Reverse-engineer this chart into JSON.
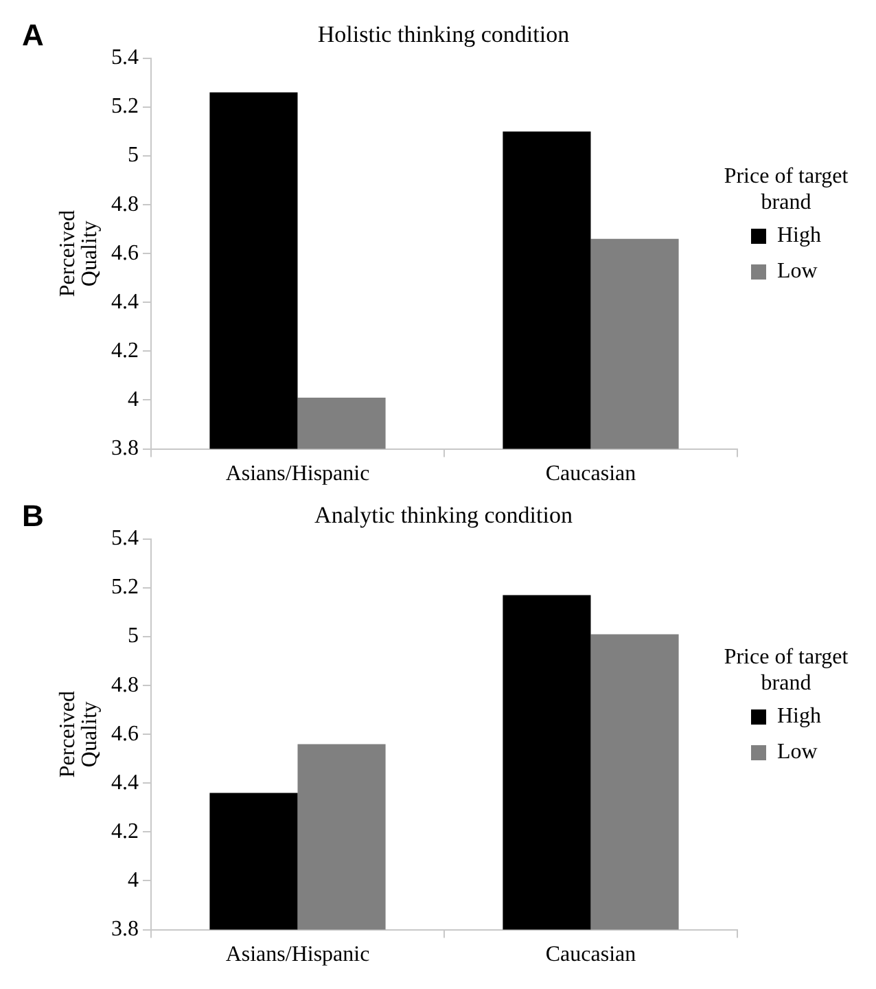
{
  "chart_data": [
    {
      "type": "bar",
      "title": "Holistic thinking condition",
      "ylabel": "Perceived Quality",
      "legend_title": "Price of target brand",
      "annotations": [
        "A"
      ],
      "categories": [
        "Asians/Hispanic",
        "Caucasian"
      ],
      "series": [
        {
          "name": "High",
          "color": "#000000",
          "values": [
            5.26,
            5.1
          ]
        },
        {
          "name": "Low",
          "color": "#808080",
          "values": [
            4.01,
            4.66
          ]
        }
      ],
      "ylim": [
        3.8,
        5.4
      ],
      "yticks": [
        {
          "value": 3.8,
          "label": "3.8"
        },
        {
          "value": 4,
          "label": "4"
        },
        {
          "value": 4.2,
          "label": "4.2"
        },
        {
          "value": 4.4,
          "label": "4.4"
        },
        {
          "value": 4.6,
          "label": "4.6"
        },
        {
          "value": 4.8,
          "label": "4.8"
        },
        {
          "value": 5,
          "label": "5"
        },
        {
          "value": 5.2,
          "label": "5.2"
        },
        {
          "value": 5.4,
          "label": "5.4"
        }
      ],
      "legend": "right"
    },
    {
      "type": "bar",
      "title": "Analytic thinking condition",
      "ylabel": "Perceived Quality",
      "legend_title": "Price of target brand",
      "annotations": [
        "B"
      ],
      "categories": [
        "Asians/Hispanic",
        "Caucasian"
      ],
      "series": [
        {
          "name": "High",
          "color": "#000000",
          "values": [
            4.36,
            5.17
          ]
        },
        {
          "name": "Low",
          "color": "#808080",
          "values": [
            4.56,
            5.01
          ]
        }
      ],
      "ylim": [
        3.8,
        5.4
      ],
      "yticks": [
        {
          "value": 3.8,
          "label": "3.8"
        },
        {
          "value": 4,
          "label": "4"
        },
        {
          "value": 4.2,
          "label": "4.2"
        },
        {
          "value": 4.4,
          "label": "4.4"
        },
        {
          "value": 4.6,
          "label": "4.6"
        },
        {
          "value": 4.8,
          "label": "4.8"
        },
        {
          "value": 5,
          "label": "5"
        },
        {
          "value": 5.2,
          "label": "5.2"
        },
        {
          "value": 5.4,
          "label": "5.4"
        }
      ],
      "legend": "right"
    }
  ]
}
